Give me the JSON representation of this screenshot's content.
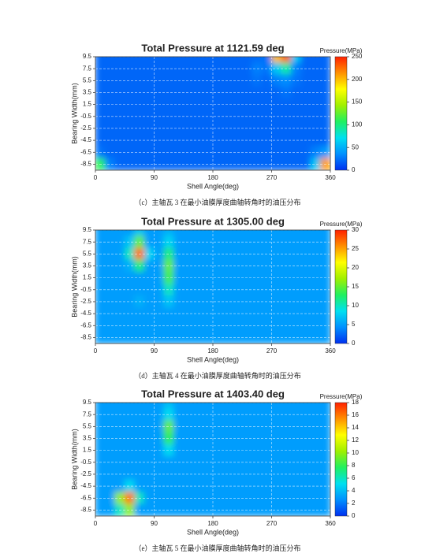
{
  "chart_data": [
    {
      "type": "heatmap",
      "title": "Total Pressure at 1121.59 deg",
      "xlabel": "Shell Angle(deg)",
      "ylabel": "Bearing Width(mm)",
      "colorbar_label": "Pressure(MPa)",
      "caption": "（c）主轴瓦 3 在最小油膜厚度曲轴转角时的油压分布",
      "xlim": [
        0,
        360
      ],
      "ylim": [
        -9.5,
        9.5
      ],
      "xticks": [
        0,
        90,
        180,
        270,
        360
      ],
      "yticks": [
        9.5,
        7.5,
        5.5,
        3.5,
        1.5,
        -0.5,
        -2.5,
        -4.5,
        -6.5,
        -8.5
      ],
      "clim": [
        0,
        250
      ],
      "cticks": [
        0,
        50,
        100,
        150,
        200,
        250
      ],
      "grid": true,
      "colorscale": [
        "#0030f0",
        "#0090ff",
        "#00e0f0",
        "#20f060",
        "#a0f000",
        "#ffff00",
        "#ff9000",
        "#ff2000"
      ],
      "x": [
        7.5,
        22.5,
        37.5,
        52.5,
        67.5,
        82.5,
        97.5,
        112.5,
        127.5,
        142.5,
        157.5,
        172.5,
        187.5,
        202.5,
        217.5,
        232.5,
        247.5,
        262.5,
        277.5,
        292.5,
        307.5,
        322.5,
        337.5,
        352.5
      ],
      "y": [
        9.5,
        7.5,
        5.5,
        3.5,
        1.5,
        -0.5,
        -2.5,
        -4.5,
        -6.5,
        -8.5
      ],
      "values": [
        [
          20,
          20,
          20,
          20,
          20,
          20,
          20,
          20,
          20,
          20,
          20,
          20,
          20,
          20,
          20,
          20,
          22,
          25,
          200,
          230,
          60,
          20,
          20,
          20
        ],
        [
          20,
          20,
          20,
          20,
          20,
          20,
          20,
          20,
          20,
          20,
          20,
          20,
          20,
          20,
          20,
          20,
          30,
          25,
          60,
          90,
          30,
          20,
          20,
          20
        ],
        [
          20,
          20,
          20,
          20,
          20,
          20,
          20,
          20,
          20,
          20,
          20,
          20,
          20,
          20,
          20,
          20,
          25,
          20,
          30,
          35,
          25,
          20,
          20,
          20
        ],
        [
          20,
          20,
          20,
          20,
          20,
          20,
          20,
          20,
          20,
          20,
          20,
          20,
          20,
          20,
          20,
          20,
          20,
          20,
          20,
          25,
          20,
          20,
          20,
          20
        ],
        [
          20,
          20,
          20,
          20,
          20,
          20,
          20,
          20,
          20,
          20,
          20,
          20,
          20,
          20,
          20,
          20,
          20,
          20,
          20,
          20,
          20,
          20,
          20,
          20
        ],
        [
          20,
          20,
          20,
          20,
          20,
          20,
          20,
          20,
          20,
          20,
          20,
          20,
          20,
          20,
          20,
          20,
          20,
          20,
          20,
          20,
          20,
          20,
          20,
          20
        ],
        [
          20,
          20,
          20,
          20,
          20,
          20,
          20,
          20,
          20,
          20,
          20,
          20,
          20,
          20,
          20,
          20,
          20,
          20,
          20,
          20,
          20,
          20,
          20,
          20
        ],
        [
          20,
          20,
          20,
          20,
          20,
          20,
          20,
          20,
          20,
          20,
          20,
          20,
          20,
          20,
          20,
          20,
          20,
          20,
          20,
          20,
          20,
          20,
          20,
          20
        ],
        [
          25,
          20,
          20,
          20,
          20,
          20,
          20,
          20,
          20,
          20,
          20,
          20,
          20,
          20,
          20,
          20,
          20,
          20,
          20,
          20,
          20,
          20,
          30,
          40
        ],
        [
          110,
          30,
          20,
          20,
          20,
          20,
          20,
          20,
          20,
          20,
          20,
          20,
          20,
          20,
          20,
          20,
          20,
          20,
          20,
          20,
          20,
          20,
          60,
          210
        ]
      ]
    },
    {
      "type": "heatmap",
      "title": "Total Pressure at 1305.00 deg",
      "xlabel": "Shell Angle(deg)",
      "ylabel": "Bearing Width(mm)",
      "colorbar_label": "Pressure(MPa)",
      "caption": "（d）主轴瓦 4 在最小油膜厚度曲轴转角时的油压分布",
      "xlim": [
        0,
        360
      ],
      "ylim": [
        -9.5,
        9.5
      ],
      "xticks": [
        0,
        90,
        180,
        270,
        360
      ],
      "yticks": [
        9.5,
        7.5,
        5.5,
        3.5,
        1.5,
        -0.5,
        -2.5,
        -4.5,
        -6.5,
        -8.5
      ],
      "clim": [
        0,
        30
      ],
      "cticks": [
        0,
        5,
        10,
        15,
        20,
        25,
        30
      ],
      "grid": true,
      "colorscale": [
        "#0030f0",
        "#0090ff",
        "#00e0f0",
        "#20f060",
        "#a0f000",
        "#ffff00",
        "#ff9000",
        "#ff2000"
      ],
      "x": [
        7.5,
        22.5,
        37.5,
        52.5,
        67.5,
        82.5,
        97.5,
        112.5,
        127.5,
        142.5,
        157.5,
        172.5,
        187.5,
        202.5,
        217.5,
        232.5,
        247.5,
        262.5,
        277.5,
        292.5,
        307.5,
        322.5,
        337.5,
        352.5
      ],
      "y": [
        9.5,
        7.5,
        5.5,
        3.5,
        1.5,
        -0.5,
        -2.5,
        -4.5,
        -6.5,
        -8.5
      ],
      "values": [
        [
          5,
          5,
          5,
          5,
          7,
          5,
          5,
          6,
          5,
          5,
          5,
          5,
          5,
          5,
          5,
          5,
          5,
          5,
          5,
          5,
          5,
          5,
          5,
          5
        ],
        [
          5,
          5,
          5,
          7,
          15,
          5,
          5,
          8,
          5,
          5,
          5,
          5,
          5,
          5,
          5,
          5,
          5,
          5,
          5,
          5,
          5,
          5,
          5,
          5
        ],
        [
          5,
          5,
          5,
          10,
          27,
          8,
          5,
          12,
          5,
          5,
          5,
          5,
          5,
          5,
          5,
          5,
          5,
          5,
          5,
          5,
          5,
          5,
          5,
          5
        ],
        [
          5,
          5,
          5,
          6,
          12,
          5,
          5,
          15,
          5,
          5,
          5,
          5,
          5,
          5,
          5,
          5,
          5,
          5,
          5,
          5,
          5,
          5,
          5,
          5
        ],
        [
          5,
          5,
          5,
          5,
          5,
          5,
          5,
          14,
          5,
          5,
          5,
          5,
          5,
          5,
          5,
          5,
          5,
          5,
          5,
          5,
          5,
          5,
          5,
          5
        ],
        [
          5,
          5,
          5,
          5,
          5,
          5,
          5,
          10,
          5,
          5,
          5,
          5,
          5,
          5,
          5,
          5,
          5,
          5,
          5,
          5,
          5,
          5,
          5,
          5
        ],
        [
          5,
          5,
          5,
          5,
          6,
          5,
          5,
          7,
          5,
          5,
          5,
          5,
          5,
          5,
          5,
          5,
          5,
          5,
          5,
          5,
          5,
          5,
          5,
          5
        ],
        [
          5,
          5,
          5,
          5,
          5,
          5,
          5,
          5,
          5,
          5,
          5,
          5,
          5,
          5,
          5,
          5,
          5,
          5,
          5,
          5,
          5,
          5,
          5,
          5
        ],
        [
          5,
          5,
          5,
          5,
          5,
          5,
          5,
          5,
          5,
          5,
          5,
          5,
          5,
          5,
          5,
          5,
          5,
          5,
          5,
          5,
          5,
          5,
          5,
          5
        ],
        [
          5,
          5,
          5,
          5,
          5,
          5,
          5,
          5,
          5,
          5,
          5,
          5,
          5,
          5,
          5,
          5,
          5,
          5,
          5,
          5,
          5,
          5,
          5,
          5
        ]
      ]
    },
    {
      "type": "heatmap",
      "title": "Total Pressure at 1403.40 deg",
      "xlabel": "Shell Angle(deg)",
      "ylabel": "Bearing Width(mm)",
      "colorbar_label": "Pressure(MPa)",
      "caption": "（e）主轴瓦 5 在最小油膜厚度曲轴转角时的油压分布",
      "xlim": [
        0,
        360
      ],
      "ylim": [
        -9.5,
        9.5
      ],
      "xticks": [
        0,
        90,
        180,
        270,
        360
      ],
      "yticks": [
        9.5,
        7.5,
        5.5,
        3.5,
        1.5,
        -0.5,
        -2.5,
        -4.5,
        -6.5,
        -8.5
      ],
      "clim": [
        0,
        18
      ],
      "cticks": [
        0,
        2,
        4,
        6,
        8,
        10,
        12,
        14,
        16,
        18
      ],
      "grid": true,
      "colorscale": [
        "#0030f0",
        "#0090ff",
        "#00e0f0",
        "#20f060",
        "#a0f000",
        "#ffff00",
        "#ff9000",
        "#ff2000"
      ],
      "x": [
        7.5,
        22.5,
        37.5,
        52.5,
        67.5,
        82.5,
        97.5,
        112.5,
        127.5,
        142.5,
        157.5,
        172.5,
        187.5,
        202.5,
        217.5,
        232.5,
        247.5,
        262.5,
        277.5,
        292.5,
        307.5,
        322.5,
        337.5,
        352.5
      ],
      "y": [
        9.5,
        7.5,
        5.5,
        3.5,
        1.5,
        -0.5,
        -2.5,
        -4.5,
        -6.5,
        -8.5
      ],
      "values": [
        [
          3,
          3,
          3,
          3,
          3,
          3,
          3,
          4,
          3,
          3,
          3,
          3,
          3,
          3,
          3,
          3,
          3,
          3,
          3,
          3,
          3,
          3,
          3,
          3
        ],
        [
          3,
          3,
          3,
          3,
          3,
          3,
          3,
          5,
          3,
          3,
          3,
          3,
          3,
          3,
          3,
          3,
          3,
          3,
          3,
          3,
          3,
          3,
          3,
          3
        ],
        [
          3,
          3,
          3,
          3,
          3,
          3,
          3,
          9,
          3,
          3,
          3,
          3,
          3,
          3,
          3,
          3,
          3,
          3,
          3,
          3,
          3,
          3,
          3,
          3
        ],
        [
          3,
          3,
          3,
          3,
          3,
          3,
          3,
          8,
          3,
          3,
          3,
          3,
          3,
          3,
          3,
          3,
          3,
          3,
          3,
          3,
          3,
          3,
          3,
          3
        ],
        [
          3,
          3,
          3,
          3,
          3,
          3,
          3,
          5,
          3,
          3,
          3,
          3,
          3,
          3,
          3,
          3,
          3,
          3,
          3,
          3,
          3,
          3,
          3,
          3
        ],
        [
          3,
          3,
          3,
          3,
          3,
          3,
          3,
          3,
          3,
          3,
          3,
          3,
          3,
          3,
          3,
          3,
          3,
          3,
          3,
          3,
          3,
          3,
          3,
          3
        ],
        [
          3,
          3,
          3,
          3,
          3,
          3,
          3,
          3,
          3,
          3,
          3,
          3,
          3,
          3,
          3,
          3,
          3,
          3,
          3,
          3,
          3,
          3,
          3,
          3
        ],
        [
          3,
          3,
          3,
          5,
          3,
          3,
          3,
          3,
          3,
          3,
          3,
          3,
          3,
          3,
          3,
          3,
          3,
          3,
          3,
          3,
          3,
          3,
          3,
          3
        ],
        [
          3,
          3,
          10,
          16,
          6,
          3,
          3,
          3,
          3,
          3,
          3,
          3,
          3,
          3,
          3,
          3,
          3,
          3,
          3,
          3,
          3,
          3,
          3,
          3
        ],
        [
          3,
          3,
          6,
          10,
          3,
          3,
          3,
          3,
          3,
          3,
          3,
          3,
          3,
          3,
          3,
          3,
          3,
          3,
          3,
          3,
          3,
          3,
          3,
          3
        ]
      ]
    }
  ]
}
